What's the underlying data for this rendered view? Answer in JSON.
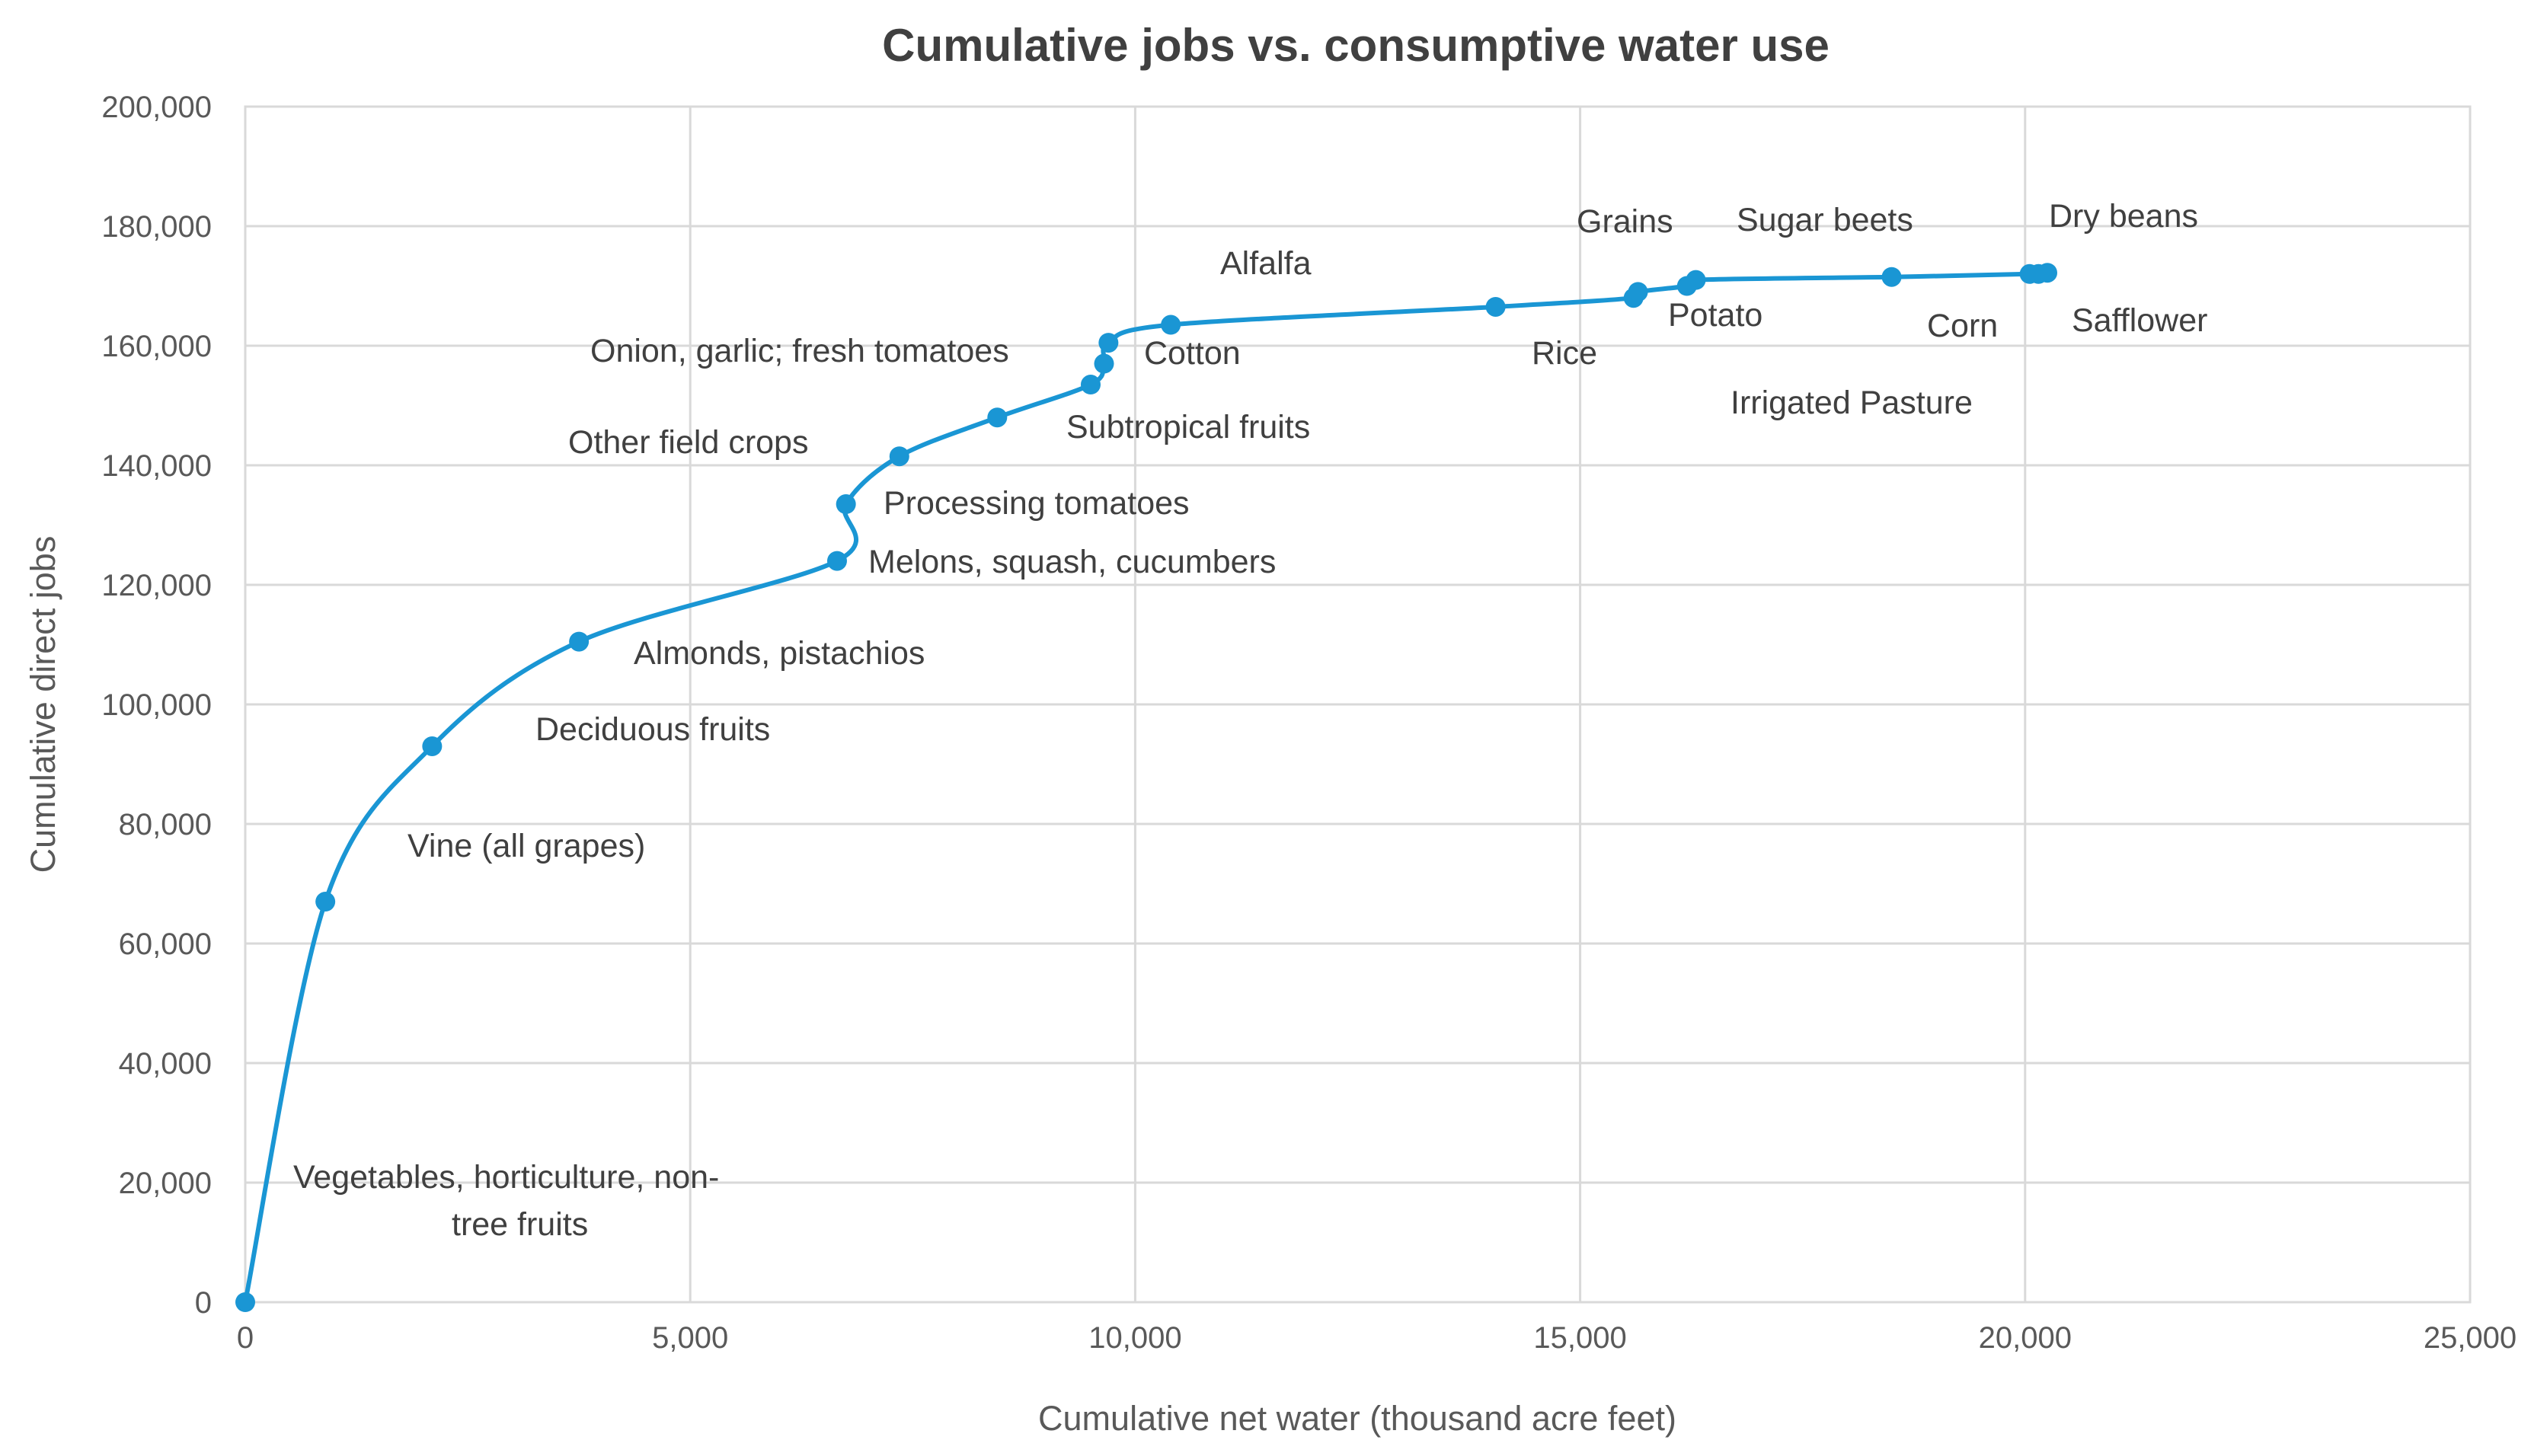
{
  "chart_data": {
    "type": "scatter",
    "title": "Cumulative jobs vs. consumptive water use",
    "xlabel": "Cumulative net water (thousand acre feet)",
    "ylabel": "Cumulative direct jobs",
    "xlim": [
      0,
      25000
    ],
    "ylim": [
      0,
      200000
    ],
    "x_ticks": [
      0,
      5000,
      10000,
      15000,
      20000,
      25000
    ],
    "x_tick_labels": [
      "0",
      "5,000",
      "10,000",
      "15,000",
      "20,000",
      "25,000"
    ],
    "y_ticks": [
      0,
      20000,
      40000,
      60000,
      80000,
      100000,
      120000,
      140000,
      160000,
      180000,
      200000
    ],
    "y_tick_labels": [
      "0",
      "20,000",
      "40,000",
      "60,000",
      "80,000",
      "100,000",
      "120,000",
      "140,000",
      "160,000",
      "180,000",
      "200,000"
    ],
    "grid": true,
    "legend": "none",
    "line_color": "#1a96d4",
    "series": [
      {
        "name": "Cumulative jobs",
        "x": [
          0,
          900,
          2100,
          3750,
          6650,
          6750,
          7350,
          8450,
          9500,
          9650,
          9700,
          10400,
          14050,
          15600,
          15650,
          16200,
          16300,
          18500,
          20050,
          20150,
          20250
        ],
        "y": [
          0,
          67000,
          93000,
          110500,
          124000,
          133500,
          141500,
          148000,
          153500,
          157000,
          160500,
          163500,
          166500,
          168000,
          169000,
          170000,
          171000,
          171500,
          172000,
          172000,
          172200
        ]
      }
    ],
    "annotations": [
      {
        "lines": [
          "Vegetables, horticulture, non-",
          "tree fruits"
        ]
      },
      {
        "lines": [
          "Vine (all grapes)"
        ]
      },
      {
        "lines": [
          "Deciduous fruits"
        ]
      },
      {
        "lines": [
          "Almonds,  pistachios"
        ]
      },
      {
        "lines": [
          "Melons, squash, cucumbers"
        ]
      },
      {
        "lines": [
          "Processing tomatoes"
        ]
      },
      {
        "lines": [
          "Other field crops"
        ]
      },
      {
        "lines": [
          "Subtropical fruits"
        ]
      },
      {
        "lines": [
          "Onion, garlic; fresh tomatoes"
        ]
      },
      {
        "lines": [
          "Cotton"
        ]
      },
      {
        "lines": [
          "Alfalfa"
        ]
      },
      {
        "lines": [
          "Rice"
        ]
      },
      {
        "lines": [
          "Grains"
        ]
      },
      {
        "lines": [
          "Potato"
        ]
      },
      {
        "lines": [
          "Sugar beets"
        ]
      },
      {
        "lines": [
          "Irrigated Pasture"
        ]
      },
      {
        "lines": [
          "Corn"
        ]
      },
      {
        "lines": [
          "Dry beans"
        ]
      },
      {
        "lines": [
          "Safflower"
        ]
      }
    ]
  }
}
